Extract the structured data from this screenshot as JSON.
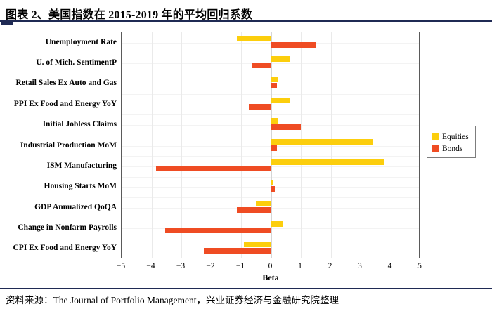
{
  "page": {
    "title": "图表 2、美国指数在 2015-2019 年的平均回归系数",
    "source": "资料来源：The Journal of Portfolio Management，兴业证券经济与金融研究院整理"
  },
  "colors": {
    "equities": "#FCCE0D",
    "bonds": "#EF4C23",
    "rule": "#1F2A54",
    "plot_border": "#5a5a5a",
    "grid_vertical": "#eaeaea",
    "grid_horizontal": "#f3f3f3",
    "zero_line": "#d5d5d5"
  },
  "chart_data": {
    "type": "bar",
    "orientation": "horizontal",
    "title": "图表 2、美国指数在 2015-2019 年的平均回归系数",
    "xlabel": "Beta",
    "xlim": [
      -5,
      5
    ],
    "xticks": [
      -5,
      -4,
      -3,
      -2,
      -1,
      0,
      1,
      2,
      3,
      4,
      5
    ],
    "grid": true,
    "legend_position": "right",
    "categories": [
      "Unemployment Rate",
      "U. of Mich. SentimentP",
      "Retail Sales Ex Auto and Gas",
      "PPI Ex Food and Energy YoY",
      "Initial Jobless Claims",
      "Industrial Production MoM",
      "ISM Manufacturing",
      "Housing Starts MoM",
      "GDP Annualized QoQA",
      "Change in Nonfarm Payrolls",
      "CPI Ex Food and Energy YoY"
    ],
    "series": [
      {
        "name": "Equities",
        "color_key": "equities",
        "values": [
          -1.15,
          0.65,
          0.25,
          0.65,
          0.25,
          3.4,
          3.8,
          0.05,
          -0.5,
          0.4,
          -0.9
        ]
      },
      {
        "name": "Bonds",
        "color_key": "bonds",
        "values": [
          1.5,
          -0.65,
          0.2,
          -0.75,
          1.0,
          0.2,
          -3.85,
          0.12,
          -1.15,
          -3.55,
          -2.25
        ]
      }
    ]
  }
}
